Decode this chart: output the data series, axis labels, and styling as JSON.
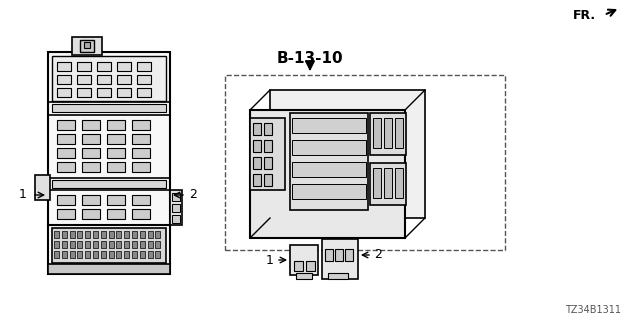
{
  "bg_color": "#ffffff",
  "title_text": "B-13-10",
  "part_number": "TZ34B1311",
  "fr_label": "FR.",
  "label1": "1",
  "label2": "2",
  "fig_width": 6.4,
  "fig_height": 3.2,
  "dpi": 100
}
